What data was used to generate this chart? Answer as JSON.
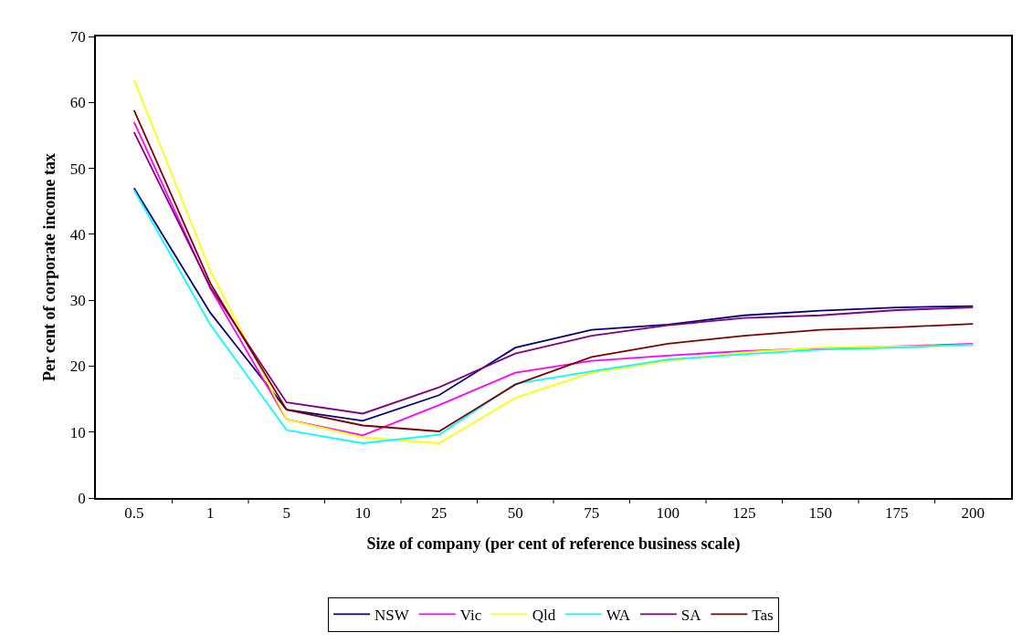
{
  "chart_data": {
    "type": "line",
    "xlabel": "Size of company (per cent of reference business scale)",
    "ylabel": "Per cent of corporate income tax",
    "categories": [
      "0.5",
      "1",
      "5",
      "10",
      "25",
      "50",
      "75",
      "100",
      "125",
      "150",
      "175",
      "200"
    ],
    "series": [
      {
        "name": "NSW",
        "color": "#000080",
        "values": [
          47.0,
          28.1,
          13.4,
          11.7,
          15.6,
          22.8,
          25.5,
          26.3,
          27.7,
          28.4,
          28.9,
          29.1
        ]
      },
      {
        "name": "Vic",
        "color": "#ff00ff",
        "values": [
          57.0,
          31.8,
          11.9,
          9.5,
          14.1,
          19.0,
          20.8,
          21.6,
          22.3,
          22.7,
          23.0,
          23.4
        ]
      },
      {
        "name": "Qld",
        "color": "#ffff00",
        "values": [
          63.4,
          34.5,
          11.9,
          9.2,
          8.3,
          15.2,
          19.0,
          20.8,
          22.1,
          22.8,
          23.0,
          23.1
        ]
      },
      {
        "name": "WA",
        "color": "#00ffff",
        "values": [
          46.7,
          26.3,
          10.3,
          8.3,
          9.6,
          17.3,
          19.2,
          21.0,
          21.8,
          22.5,
          22.8,
          23.3
        ]
      },
      {
        "name": "SA",
        "color": "#800080",
        "values": [
          55.5,
          32.0,
          14.5,
          12.8,
          16.8,
          21.9,
          24.6,
          26.2,
          27.3,
          27.7,
          28.5,
          28.9
        ]
      },
      {
        "name": "Tas",
        "color": "#800000",
        "values": [
          58.8,
          32.6,
          13.4,
          11.0,
          10.1,
          17.2,
          21.4,
          23.4,
          24.6,
          25.5,
          25.9,
          26.4
        ]
      }
    ],
    "ylim": [
      0,
      70
    ],
    "yticks": [
      0,
      10,
      20,
      30,
      40,
      50,
      60,
      70
    ],
    "grid": false,
    "legend": "bottom",
    "marker": "none",
    "line_style": "solid"
  }
}
